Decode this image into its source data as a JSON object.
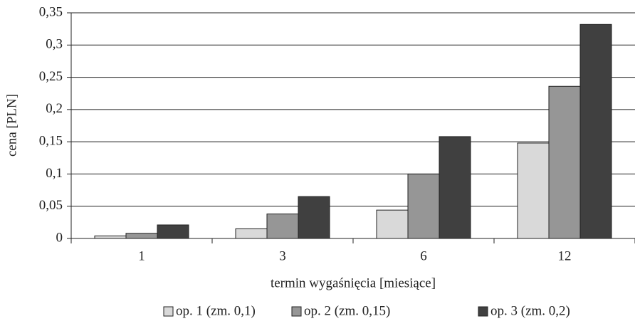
{
  "chart_data": {
    "type": "bar",
    "x_label": "termin wygaśnięcia [miesiące]",
    "y_label": "cena [PLN]",
    "categories": [
      "1",
      "3",
      "6",
      "12"
    ],
    "series": [
      {
        "name": "op. 1 (zm. 0,1)",
        "color": "#d9d9d9",
        "values": [
          0.004,
          0.015,
          0.044,
          0.148
        ]
      },
      {
        "name": "op. 2 (zm. 0,15)",
        "color": "#969696",
        "values": [
          0.008,
          0.038,
          0.1,
          0.236
        ]
      },
      {
        "name": "op. 3 (zm. 0,2)",
        "color": "#404040",
        "values": [
          0.021,
          0.065,
          0.158,
          0.332
        ]
      }
    ],
    "ylim": [
      0,
      0.35
    ],
    "yticks": [
      0,
      {
        "value": 0.05,
        "label": "0,05"
      },
      {
        "value": 0.1,
        "label": "0,1"
      },
      {
        "value": 0.15,
        "label": "0,15"
      },
      {
        "value": 0.2,
        "label": "0,2"
      },
      {
        "value": 0.25,
        "label": "0,25"
      },
      {
        "value": 0.3,
        "label": "0,3"
      },
      {
        "value": 0.35,
        "label": "0,35"
      }
    ],
    "grid": true,
    "legend": "bottom"
  }
}
